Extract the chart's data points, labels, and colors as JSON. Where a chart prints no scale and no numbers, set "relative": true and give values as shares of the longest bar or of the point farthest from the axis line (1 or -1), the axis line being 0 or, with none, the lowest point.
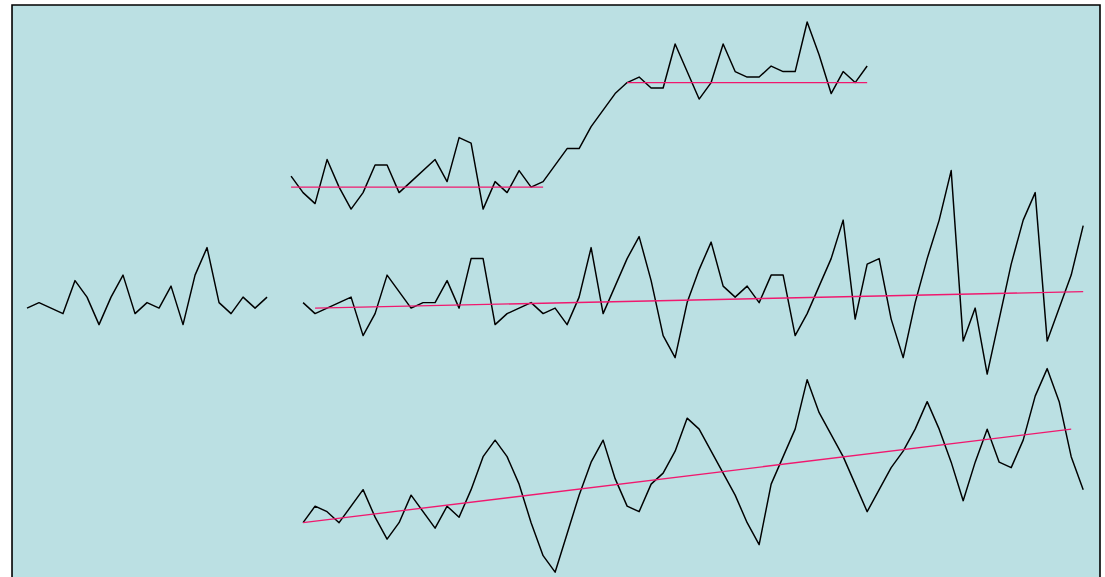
{
  "chart_data": {
    "type": "line",
    "relative": true,
    "categories": [
      null,
      null,
      null,
      null,
      null,
      null,
      null,
      null,
      null,
      null,
      null,
      null,
      null,
      null,
      null,
      null,
      null,
      null,
      null,
      null,
      null,
      null,
      null,
      null,
      null,
      null,
      null,
      null,
      null,
      null,
      null,
      null,
      null,
      null,
      null,
      null,
      null,
      null,
      null,
      null,
      null,
      null,
      null,
      null,
      null,
      null,
      null,
      null,
      null,
      null,
      null,
      null,
      null,
      null,
      null,
      null,
      null,
      null,
      null,
      null,
      null,
      null,
      null,
      null,
      null,
      null,
      null,
      null,
      null,
      null,
      null,
      null,
      null,
      null,
      null,
      null,
      null,
      null,
      null,
      null,
      null,
      null,
      null,
      null,
      null,
      null,
      null,
      null,
      null,
      null
    ],
    "series": [
      {
        "color": "#000000",
        "values": [
          0.48,
          0.49,
          0.48,
          0.47,
          0.53,
          0.5,
          0.45,
          0.5,
          0.54,
          0.47,
          0.49,
          0.48,
          0.52,
          0.45,
          0.54,
          0.59,
          0.49,
          0.47,
          0.5,
          0.48,
          0.5,
          null,
          null,
          null,
          null,
          null,
          null,
          null,
          null,
          null,
          null,
          null,
          null,
          null,
          null,
          null,
          null,
          null,
          null,
          null,
          null,
          null,
          null,
          null,
          null,
          null,
          null,
          null,
          null,
          null,
          null,
          null,
          null,
          null,
          null,
          null,
          null,
          null,
          null,
          null,
          null,
          null,
          null,
          null,
          null,
          null,
          null,
          null,
          null,
          null,
          null,
          null,
          null,
          null,
          null,
          null,
          null,
          null,
          null,
          null,
          null,
          null,
          null,
          null,
          null,
          null,
          null,
          null,
          null,
          null
        ]
      },
      {
        "color": "#000000",
        "values": [
          null,
          null,
          null,
          null,
          null,
          null,
          null,
          null,
          null,
          null,
          null,
          null,
          null,
          null,
          null,
          null,
          null,
          null,
          null,
          null,
          null,
          null,
          null,
          0.49,
          0.47,
          0.48,
          0.49,
          0.5,
          0.43,
          0.47,
          0.54,
          0.51,
          0.48,
          0.49,
          0.49,
          0.53,
          0.48,
          0.57,
          0.57,
          0.45,
          0.47,
          0.48,
          0.49,
          0.47,
          0.48,
          0.45,
          0.5,
          0.59,
          0.47,
          0.52,
          0.57,
          0.61,
          0.53,
          0.43,
          0.39,
          0.49,
          0.55,
          0.6,
          0.52,
          0.5,
          0.52,
          0.49,
          0.54,
          0.54,
          0.43,
          0.47,
          0.52,
          0.57,
          0.64,
          0.46,
          0.56,
          0.57,
          0.46,
          0.39,
          0.49,
          0.57,
          0.64,
          0.73,
          0.42,
          0.48,
          0.36,
          0.46,
          0.56,
          0.64,
          0.69,
          0.42,
          0.48,
          0.54,
          0.63,
          null
        ]
      },
      {
        "color": "#000000",
        "values": [
          null,
          null,
          null,
          null,
          null,
          null,
          null,
          null,
          null,
          null,
          null,
          null,
          null,
          null,
          null,
          null,
          null,
          null,
          null,
          null,
          null,
          null,
          0.72,
          0.69,
          0.67,
          0.75,
          0.7,
          0.66,
          0.69,
          0.74,
          0.74,
          0.69,
          0.71,
          0.73,
          0.75,
          0.71,
          0.79,
          0.78,
          0.66,
          0.71,
          0.69,
          0.73,
          0.7,
          0.71,
          0.74,
          0.77,
          0.77,
          0.81,
          0.84,
          0.87,
          0.89,
          0.9,
          0.88,
          0.88,
          0.96,
          0.91,
          0.86,
          0.89,
          0.96,
          0.91,
          0.9,
          0.9,
          0.92,
          0.91,
          0.91,
          1.0,
          0.94,
          0.87,
          0.91,
          0.89,
          0.92,
          null,
          null,
          null,
          null,
          null,
          null,
          null,
          null,
          null,
          null,
          null,
          null,
          null,
          null,
          null,
          null,
          null,
          null,
          null
        ]
      },
      {
        "color": "#000000",
        "values": [
          null,
          null,
          null,
          null,
          null,
          null,
          null,
          null,
          null,
          null,
          null,
          null,
          null,
          null,
          null,
          null,
          null,
          null,
          null,
          null,
          null,
          null,
          null,
          0.09,
          0.12,
          0.11,
          0.09,
          0.12,
          0.15,
          0.1,
          0.06,
          0.09,
          0.14,
          0.11,
          0.08,
          0.12,
          0.1,
          0.15,
          0.21,
          0.24,
          0.21,
          0.16,
          0.09,
          0.03,
          0.0,
          0.07,
          0.14,
          0.2,
          0.24,
          0.17,
          0.12,
          0.11,
          0.16,
          0.18,
          0.22,
          0.28,
          0.26,
          0.22,
          0.18,
          0.14,
          0.09,
          0.05,
          0.16,
          0.21,
          0.26,
          0.35,
          0.29,
          0.25,
          0.21,
          0.16,
          0.11,
          0.15,
          0.19,
          0.22,
          0.26,
          0.31,
          0.26,
          0.2,
          0.13,
          0.2,
          0.26,
          0.2,
          0.19,
          0.24,
          0.32,
          0.37,
          0.31,
          0.21,
          0.15,
          null
        ]
      },
      {
        "color": "#f0186e",
        "values": [
          null,
          null,
          null,
          null,
          null,
          null,
          null,
          null,
          null,
          null,
          null,
          null,
          null,
          null,
          null,
          null,
          null,
          null,
          null,
          null,
          null,
          null,
          0.7,
          null,
          null,
          null,
          null,
          null,
          null,
          null,
          null,
          null,
          null,
          null,
          null,
          null,
          null,
          null,
          null,
          null,
          null,
          null,
          null,
          0.7,
          null,
          null,
          null,
          null,
          null,
          null,
          null,
          null,
          null,
          null,
          null,
          null,
          null,
          null,
          null,
          null,
          null,
          null,
          null,
          null,
          null,
          null,
          null,
          null,
          null,
          null,
          null,
          null,
          null,
          null,
          null,
          null,
          null,
          null,
          null,
          null,
          null,
          null,
          null,
          null,
          null,
          null,
          null,
          null,
          null,
          null
        ]
      },
      {
        "color": "#f0186e",
        "values": [
          null,
          null,
          null,
          null,
          null,
          null,
          null,
          null,
          null,
          null,
          null,
          null,
          null,
          null,
          null,
          null,
          null,
          null,
          null,
          null,
          null,
          null,
          null,
          null,
          null,
          null,
          null,
          null,
          null,
          null,
          null,
          null,
          null,
          null,
          null,
          null,
          null,
          null,
          null,
          null,
          null,
          null,
          null,
          null,
          null,
          null,
          null,
          null,
          null,
          null,
          0.89,
          null,
          null,
          null,
          null,
          null,
          null,
          null,
          null,
          null,
          null,
          null,
          null,
          null,
          null,
          null,
          null,
          null,
          null,
          null,
          0.89,
          null,
          null,
          null,
          null,
          null,
          null,
          null,
          null,
          null,
          null,
          null,
          null,
          null,
          null,
          null,
          null,
          null,
          null,
          null
        ]
      },
      {
        "color": "#f0186e",
        "values": [
          null,
          null,
          null,
          null,
          null,
          null,
          null,
          null,
          null,
          null,
          null,
          null,
          null,
          null,
          null,
          null,
          null,
          null,
          null,
          null,
          null,
          null,
          null,
          null,
          0.48,
          null,
          null,
          null,
          null,
          null,
          null,
          null,
          null,
          null,
          null,
          null,
          null,
          null,
          null,
          null,
          null,
          null,
          null,
          null,
          null,
          null,
          null,
          null,
          null,
          null,
          null,
          null,
          null,
          null,
          null,
          null,
          null,
          null,
          null,
          null,
          null,
          null,
          null,
          null,
          null,
          null,
          null,
          null,
          null,
          null,
          null,
          null,
          null,
          null,
          null,
          null,
          null,
          null,
          null,
          null,
          null,
          null,
          null,
          null,
          null,
          null,
          null,
          null,
          0.51,
          null
        ]
      },
      {
        "color": "#f0186e",
        "values": [
          null,
          null,
          null,
          null,
          null,
          null,
          null,
          null,
          null,
          null,
          null,
          null,
          null,
          null,
          null,
          null,
          null,
          null,
          null,
          null,
          null,
          null,
          null,
          0.09,
          null,
          null,
          null,
          null,
          null,
          null,
          null,
          null,
          null,
          null,
          null,
          null,
          null,
          null,
          null,
          null,
          null,
          null,
          null,
          null,
          null,
          null,
          null,
          null,
          null,
          null,
          null,
          null,
          null,
          null,
          null,
          null,
          null,
          null,
          null,
          null,
          null,
          null,
          null,
          null,
          null,
          null,
          null,
          null,
          null,
          null,
          null,
          null,
          null,
          null,
          null,
          null,
          null,
          null,
          null,
          null,
          null,
          null,
          null,
          null,
          null,
          null,
          null,
          0.26,
          null,
          null
        ]
      }
    ]
  }
}
